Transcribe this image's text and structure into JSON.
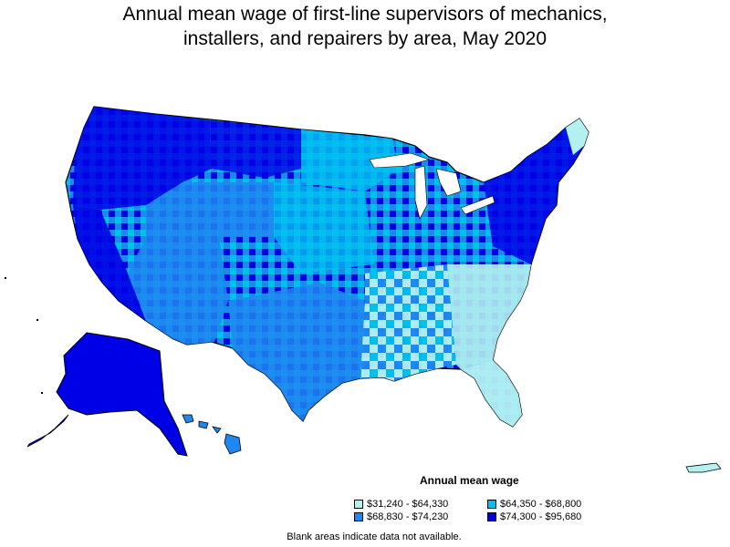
{
  "title_line1": "Annual mean wage of first-line supervisors of mechanics,",
  "title_line2": "installers, and repairers by area, May 2020",
  "legend": {
    "title": "Annual mean wage",
    "items": [
      {
        "label": "$31,240 - $64,330",
        "color": "#b3f0f0"
      },
      {
        "label": "$64,350 - $68,800",
        "color": "#00c0f0"
      },
      {
        "label": "$68,830 - $74,230",
        "color": "#1e88f0"
      },
      {
        "label": "$74,300 - $95,680",
        "color": "#0000e6"
      }
    ]
  },
  "note": "Blank areas indicate data not available.",
  "colors": {
    "outline": "#000000",
    "background": "#ffffff"
  }
}
